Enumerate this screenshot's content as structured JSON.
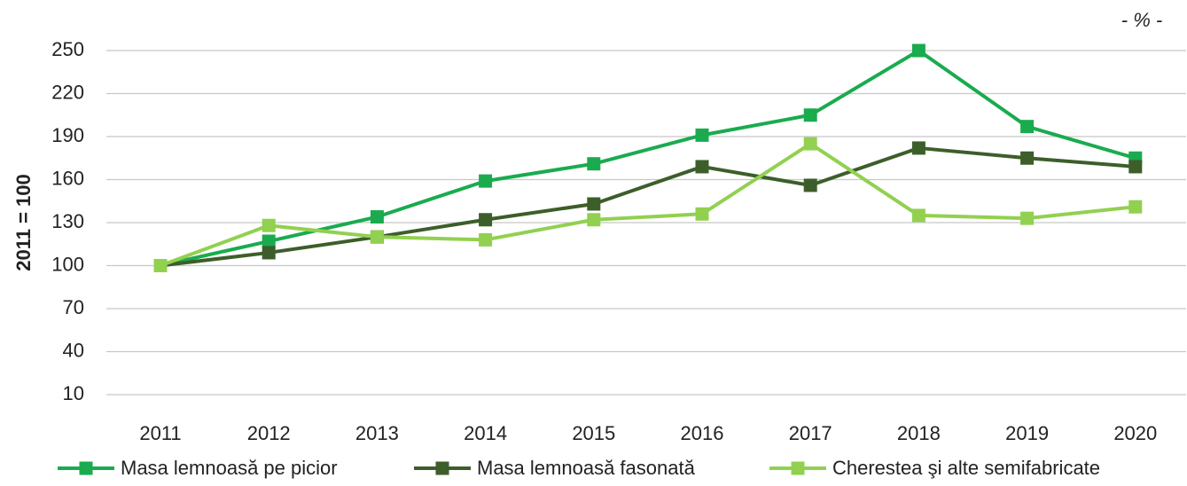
{
  "chart_data": {
    "type": "line",
    "unit_label": "- % -",
    "y_label": "2011 = 100",
    "categories": [
      "2011",
      "2012",
      "2013",
      "2014",
      "2015",
      "2016",
      "2017",
      "2018",
      "2019",
      "2020"
    ],
    "series": [
      {
        "name": "Masa lemnoasă pe picior",
        "color": "#1aab4f",
        "values": [
          100,
          117,
          134,
          159,
          171,
          191,
          205,
          250,
          197,
          175
        ]
      },
      {
        "name": "Masa lemnoasă fasonată",
        "color": "#3d5e2a",
        "values": [
          100,
          109,
          120,
          132,
          143,
          169,
          156,
          182,
          175,
          169
        ]
      },
      {
        "name": "Cherestea şi alte semifabricate",
        "color": "#92d050",
        "values": [
          100,
          128,
          120,
          118,
          132,
          136,
          185,
          135,
          133,
          141
        ]
      }
    ],
    "ylim": [
      10,
      250
    ],
    "yticks": [
      10,
      40,
      70,
      100,
      130,
      160,
      190,
      220,
      250
    ],
    "grid": true,
    "legend": "bottom"
  }
}
